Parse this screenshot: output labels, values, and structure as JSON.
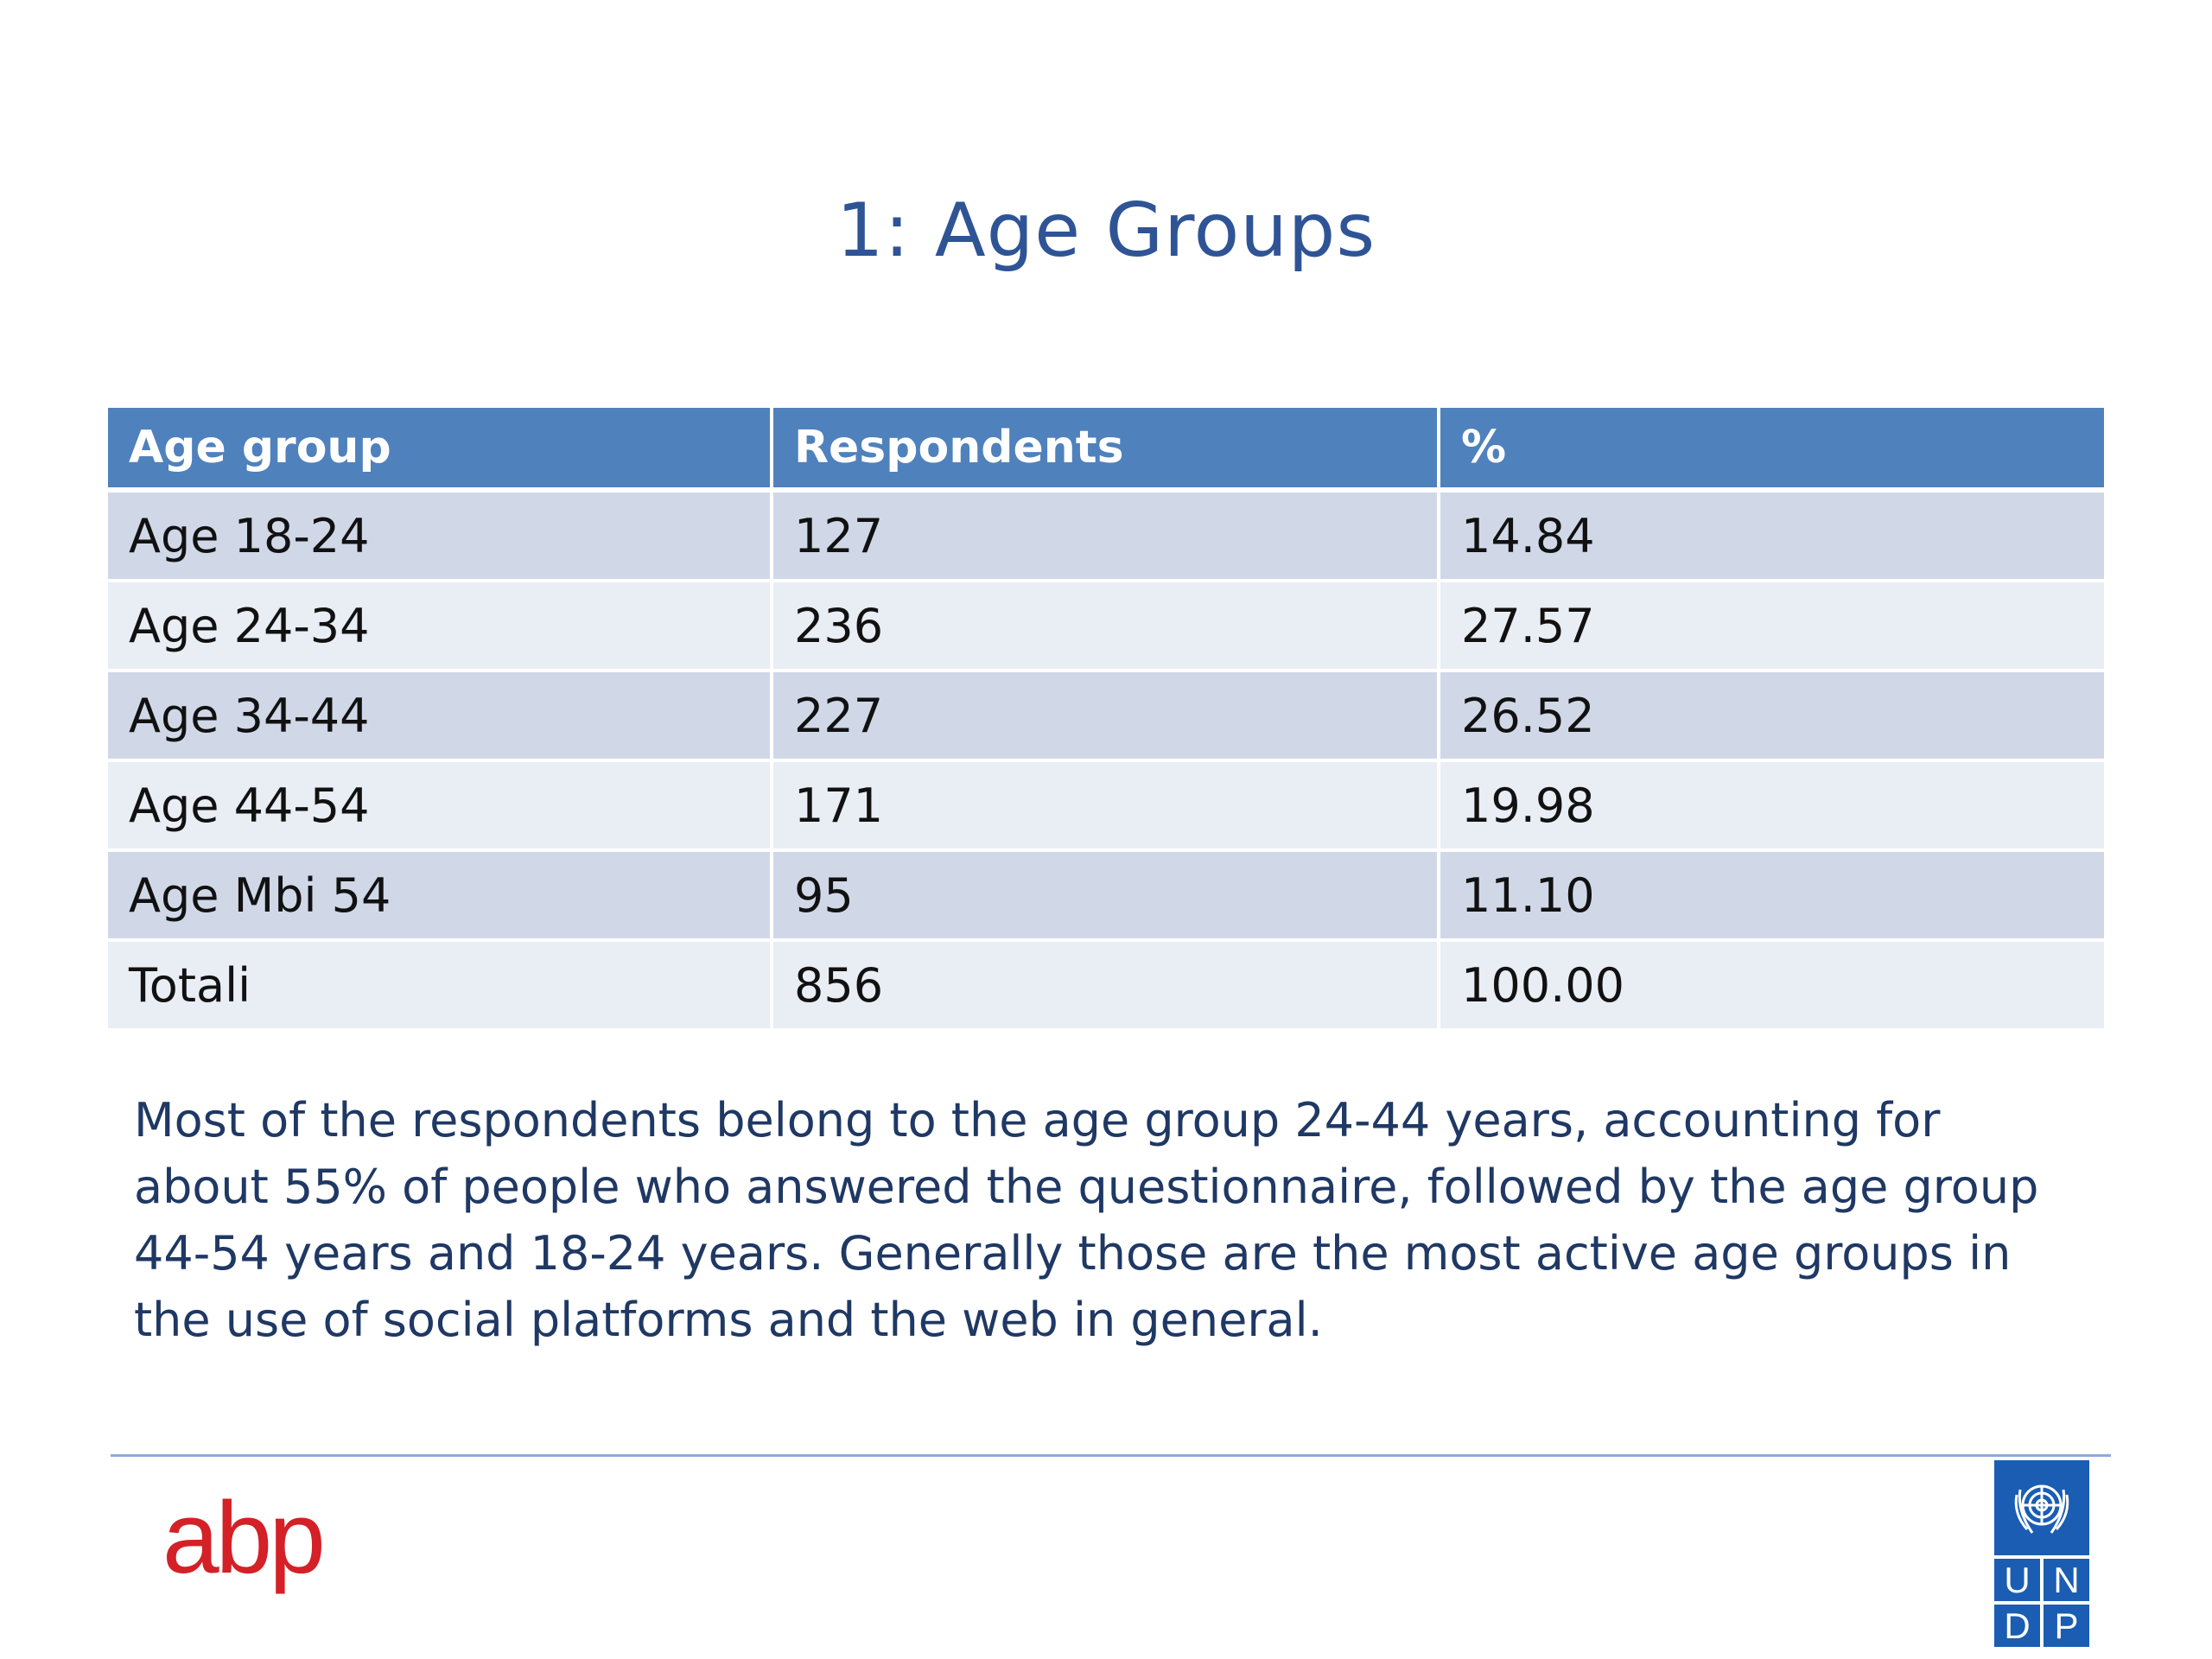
{
  "slide": {
    "title": "1: Age Groups"
  },
  "table": {
    "headers": [
      "Age group",
      "Respondents",
      "%"
    ],
    "rows": [
      [
        "Age 18-24",
        "127",
        "14.84"
      ],
      [
        "Age 24-34",
        "236",
        "27.57"
      ],
      [
        "Age 34-44",
        "227",
        "26.52"
      ],
      [
        "Age 44-54",
        "171",
        "19.98"
      ],
      [
        "Age Mbi 54",
        "95",
        "11.10"
      ],
      [
        "Totali",
        "856",
        "100.00"
      ]
    ]
  },
  "summary": {
    "text": "Most of the respondents belong to the age group 24-44 years, accounting for about 55% of people who answered the questionnaire, followed by the age group 44-54 years and 18-24 years. Generally those are the most active age groups in the use of social platforms and the web in general."
  },
  "footer": {
    "left_logo": "abp",
    "right_logo_letters": [
      "U",
      "N",
      "D",
      "P"
    ],
    "right_logo_emblem": "un-emblem-icon"
  },
  "colors": {
    "title": "#2f5496",
    "header_bg": "#4f81bd",
    "row_odd": "#d0d8e8",
    "row_even": "#e9edf4",
    "summary_text": "#1f3864",
    "abp_red": "#d42027",
    "undp_blue": "#1a5db3"
  }
}
